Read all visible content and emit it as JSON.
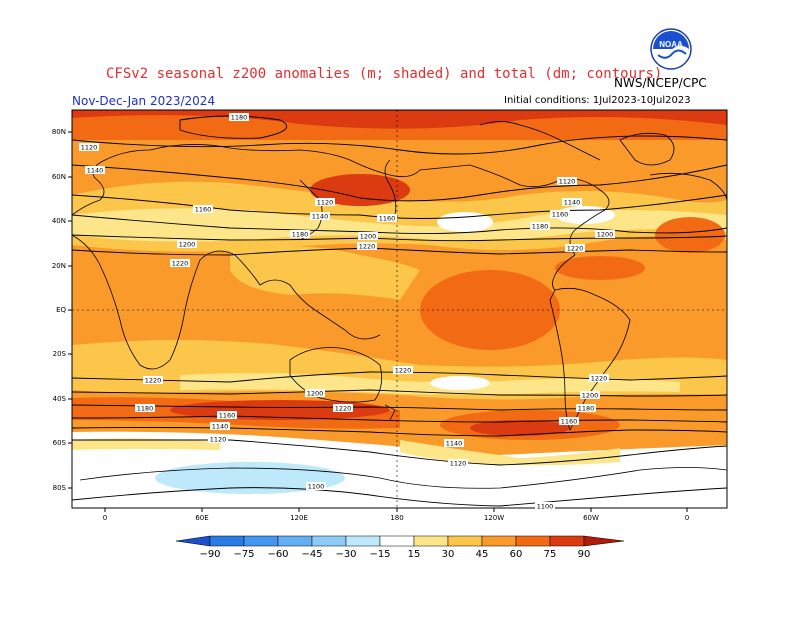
{
  "header": {
    "title": "CFSv2 seasonal z200 anomalies (m; shaded) and total (dm; contours)",
    "period": "Nov-Dec-Jan 2023/2024",
    "organization": "NWS/NCEP/CPC",
    "initial_conditions": "Initial conditions: 1Jul2023-10Jul2023",
    "logo_text": "NOAA"
  },
  "axes": {
    "lat_labels": [
      "80N",
      "60N",
      "40N",
      "20N",
      "EQ",
      "20S",
      "40S",
      "60S",
      "80S"
    ],
    "lon_labels": [
      "0",
      "60E",
      "120E",
      "180",
      "120W",
      "60W",
      "0"
    ]
  },
  "contour_labels": [
    {
      "text": "1180"
    },
    {
      "text": "1120"
    },
    {
      "text": "1140"
    },
    {
      "text": "1160"
    },
    {
      "text": "1120"
    },
    {
      "text": "1140"
    },
    {
      "text": "1180"
    },
    {
      "text": "1160"
    },
    {
      "text": "1200"
    },
    {
      "text": "1220"
    },
    {
      "text": "1200"
    },
    {
      "text": "1220"
    },
    {
      "text": "1120"
    },
    {
      "text": "1140"
    },
    {
      "text": "1160"
    },
    {
      "text": "1180"
    },
    {
      "text": "1200"
    },
    {
      "text": "1220"
    },
    {
      "text": "1220"
    },
    {
      "text": "1220"
    },
    {
      "text": "1200"
    },
    {
      "text": "1180"
    },
    {
      "text": "1160"
    },
    {
      "text": "1140"
    },
    {
      "text": "1120"
    },
    {
      "text": "1100"
    },
    {
      "text": "1220"
    },
    {
      "text": "1220"
    },
    {
      "text": "1200"
    },
    {
      "text": "1180"
    },
    {
      "text": "1160"
    },
    {
      "text": "1140"
    },
    {
      "text": "1120"
    },
    {
      "text": "1100"
    }
  ],
  "colorbar": {
    "labels": [
      "−90",
      "−75",
      "−60",
      "−45",
      "−30",
      "−15",
      "15",
      "30",
      "45",
      "60",
      "75",
      "90"
    ],
    "colors": [
      "#1a4fd0",
      "#2b7be6",
      "#4496ee",
      "#62aff4",
      "#8ecaf8",
      "#bde9fb",
      "#ffffff",
      "#fde58a",
      "#fbc64a",
      "#f99a2a",
      "#f26a14",
      "#dc3a10",
      "#b01a0a"
    ]
  },
  "colors": {
    "title": "#e03030",
    "period": "#2030c0",
    "shade_weak": "#fde58a",
    "shade_moderate": "#fbc64a",
    "shade_strong": "#f99a2a",
    "shade_very_strong": "#f26a14",
    "shade_extreme": "#dc3a10",
    "shade_negative": "#bde9fb"
  }
}
